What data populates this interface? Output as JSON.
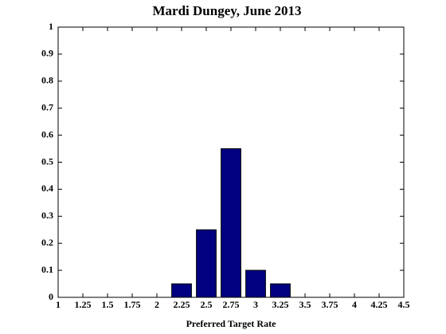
{
  "chart_data": {
    "type": "bar",
    "title": "Mardi Dungey, June 2013",
    "x_label": "Preferred Target Rate",
    "x": [
      2.25,
      2.5,
      2.75,
      3,
      3.25
    ],
    "values": [
      0.05,
      0.25,
      0.55,
      0.1,
      0.05
    ],
    "color": "#000080",
    "xlim": [
      1,
      4.5
    ],
    "xticks": [
      1,
      1.25,
      1.5,
      1.75,
      2,
      2.25,
      2.5,
      2.75,
      3,
      3.25,
      3.5,
      3.75,
      4,
      4.25,
      4.5
    ],
    "ylim": [
      0,
      1
    ],
    "yticks": [
      0,
      0.1,
      0.2,
      0.3,
      0.4,
      0.5,
      0.6,
      0.7,
      0.8,
      0.9,
      1
    ],
    "grid": false
  }
}
